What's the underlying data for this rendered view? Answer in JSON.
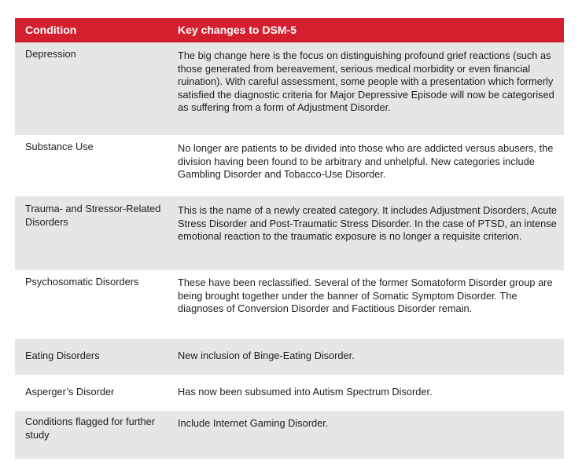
{
  "table": {
    "headers": {
      "condition": "Condition",
      "changes": "Key changes to DSM-5"
    },
    "rows": [
      {
        "condition": "Depression",
        "description": "The big change here is the focus on distinguishing profound grief reactions (such as those generated from bereavement, serious medical morbidity or even financial ruination). With careful assessment, some people with a presentation which formerly satisfied the diagnostic criteria for Major Depressive Episode will now be categorised as suffering from a form of Adjustment Disorder."
      },
      {
        "condition": "Substance Use",
        "description": "No longer are patients to be divided into those who are addicted versus abusers, the division having been found to be arbitrary and unhelpful. New categories include Gambling Disorder and Tobacco-Use Disorder."
      },
      {
        "condition": "Trauma- and Stressor-Related Disorders",
        "description": "This is the name of a newly created category. It includes Adjustment Disorders, Acute Stress Disorder and Post-Traumatic Stress Disorder. In the case of PTSD, an intense emotional reaction to the traumatic exposure is no longer a requisite criterion."
      },
      {
        "condition": "Psychosomatic Disorders",
        "description": "These have been reclassified. Several of the former Somatoform Disorder group are being brought together under the banner of Somatic Symptom Disorder. The diagnoses of Conversion Disorder and Factitious Disorder remain."
      },
      {
        "condition": "Eating Disorders",
        "description": "New inclusion of Binge-Eating Disorder."
      },
      {
        "condition": "Asperger’s Disorder",
        "description": "Has now been subsumed into Autism Spectrum Disorder."
      },
      {
        "condition": "Conditions flagged for further study",
        "description": "Include Internet Gaming Disorder."
      }
    ]
  },
  "colors": {
    "header_background": "#d4202e",
    "header_text": "#ffffff",
    "row_shaded": "#e6e6e6",
    "row_plain": "#ffffff",
    "body_text": "#1e1e1e"
  }
}
